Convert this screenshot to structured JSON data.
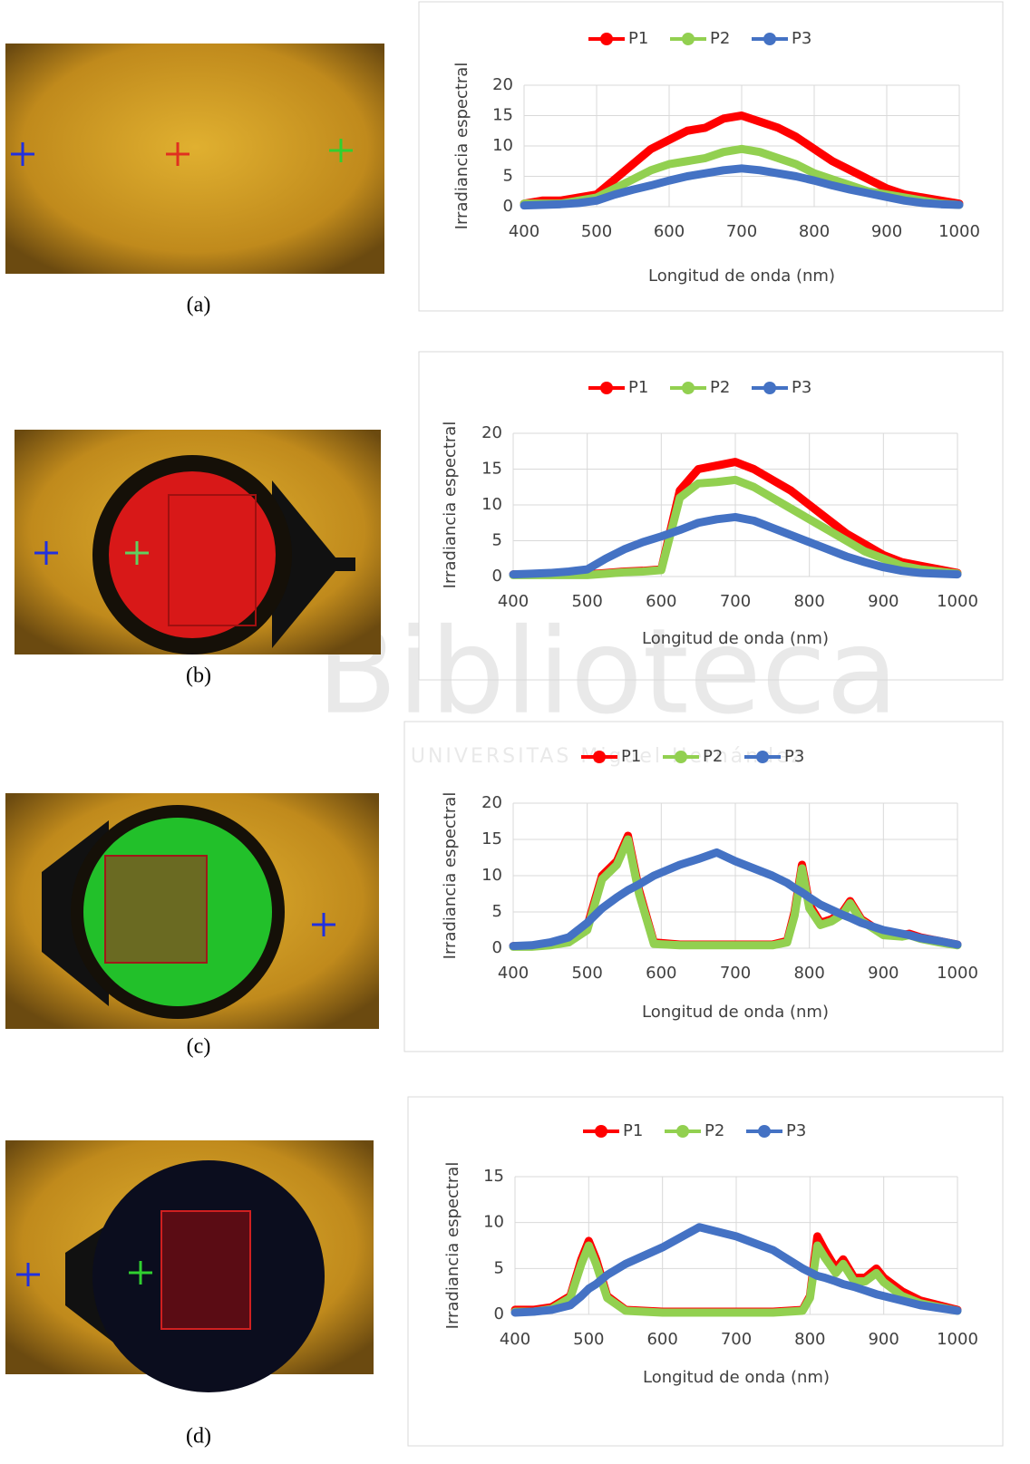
{
  "watermark": {
    "title": "Biblioteca",
    "subtitle": "UNIVERSITAS Miguel Hernández"
  },
  "chart_data": [
    {
      "type": "line",
      "caption": "(a)",
      "xlabel": "Longitud de onda (nm)",
      "ylabel": "Irradiancia espectral",
      "legend": "top",
      "grid": true,
      "xlim": [
        400,
        1000
      ],
      "xticks": [
        400,
        500,
        600,
        700,
        800,
        900,
        1000
      ],
      "ylim": [
        0,
        20
      ],
      "yticks": [
        0,
        5,
        10,
        15,
        20
      ],
      "x": [
        400,
        425,
        450,
        475,
        500,
        525,
        550,
        575,
        600,
        625,
        650,
        675,
        700,
        725,
        750,
        775,
        800,
        825,
        850,
        875,
        900,
        925,
        950,
        975,
        1000
      ],
      "series": [
        {
          "name": "P1",
          "color": "#ff0000",
          "values": [
            0.5,
            1,
            1,
            1.5,
            2,
            4.5,
            7,
            9.5,
            11,
            12.5,
            13,
            14.5,
            15,
            14,
            13,
            11.5,
            9.5,
            7.5,
            6,
            4.5,
            3,
            2,
            1.5,
            1,
            0.5
          ]
        },
        {
          "name": "P2",
          "color": "#92d050",
          "values": [
            0.5,
            0.5,
            0.5,
            1,
            1.5,
            3,
            4.5,
            6,
            7,
            7.5,
            8,
            9,
            9.5,
            9,
            8,
            7,
            5.5,
            4.5,
            3.5,
            2.5,
            2,
            1.5,
            1,
            0.5,
            0.3
          ]
        },
        {
          "name": "P3",
          "color": "#4472c4",
          "values": [
            0.2,
            0.3,
            0.4,
            0.6,
            1,
            2,
            2.8,
            3.5,
            4.3,
            5,
            5.5,
            6,
            6.3,
            6,
            5.5,
            5,
            4.3,
            3.5,
            2.8,
            2.2,
            1.6,
            1,
            0.6,
            0.4,
            0.3
          ]
        }
      ]
    },
    {
      "type": "line",
      "caption": "(b)",
      "xlabel": "Longitud de onda (nm)",
      "ylabel": "Irradiancia espectral",
      "legend": "top",
      "grid": true,
      "xlim": [
        400,
        1000
      ],
      "xticks": [
        400,
        500,
        600,
        700,
        800,
        900,
        1000
      ],
      "ylim": [
        0,
        20
      ],
      "yticks": [
        0,
        5,
        10,
        15,
        20
      ],
      "x": [
        400,
        425,
        450,
        475,
        500,
        525,
        550,
        575,
        600,
        625,
        650,
        675,
        700,
        725,
        750,
        775,
        800,
        825,
        850,
        875,
        900,
        925,
        950,
        975,
        1000
      ],
      "series": [
        {
          "name": "P1",
          "color": "#ff0000",
          "values": [
            0.3,
            0.3,
            0.3,
            0.3,
            0.3,
            0.5,
            0.7,
            0.8,
            1,
            12,
            15,
            15.5,
            16,
            15,
            13.5,
            12,
            10,
            8,
            6,
            4.5,
            3,
            2,
            1.5,
            1,
            0.5
          ]
        },
        {
          "name": "P2",
          "color": "#92d050",
          "values": [
            0.2,
            0.2,
            0.2,
            0.2,
            0.2,
            0.4,
            0.6,
            0.7,
            0.9,
            11,
            13,
            13.2,
            13.5,
            12.5,
            11,
            9.5,
            8,
            6.5,
            5,
            3.5,
            2.5,
            1.5,
            1,
            0.7,
            0.4
          ]
        },
        {
          "name": "P3",
          "color": "#4472c4",
          "values": [
            0.3,
            0.4,
            0.5,
            0.7,
            1,
            2.5,
            3.8,
            4.8,
            5.6,
            6.5,
            7.5,
            8,
            8.3,
            7.8,
            6.8,
            5.8,
            4.8,
            3.8,
            2.8,
            2,
            1.3,
            0.8,
            0.5,
            0.4,
            0.3
          ]
        }
      ]
    },
    {
      "type": "line",
      "caption": "(c)",
      "xlabel": "Longitud de onda (nm)",
      "ylabel": "Irradiancia espectral",
      "legend": "top",
      "grid": true,
      "xlim": [
        400,
        1000
      ],
      "xticks": [
        400,
        500,
        600,
        700,
        800,
        900,
        1000
      ],
      "ylim": [
        0,
        20
      ],
      "yticks": [
        0,
        5,
        10,
        15,
        20
      ],
      "x": [
        400,
        425,
        450,
        475,
        500,
        520,
        540,
        555,
        570,
        590,
        625,
        650,
        675,
        700,
        725,
        750,
        770,
        780,
        790,
        800,
        815,
        830,
        845,
        855,
        870,
        900,
        925,
        935,
        950,
        975,
        1000
      ],
      "series": [
        {
          "name": "P1",
          "color": "#ff0000",
          "values": [
            0.3,
            0.3,
            0.5,
            1,
            3,
            10,
            12,
            15.5,
            8,
            0.8,
            0.5,
            0.5,
            0.5,
            0.5,
            0.5,
            0.5,
            1,
            5,
            11.5,
            6,
            3.5,
            4,
            5,
            6.5,
            4,
            2,
            1.8,
            2,
            1.5,
            1,
            0.5
          ]
        },
        {
          "name": "P2",
          "color": "#92d050",
          "values": [
            0.2,
            0.2,
            0.4,
            0.8,
            2.5,
            9.5,
            11.5,
            15,
            7.5,
            0.6,
            0.4,
            0.4,
            0.4,
            0.4,
            0.4,
            0.4,
            0.8,
            4.5,
            11,
            5.5,
            3.2,
            3.7,
            4.7,
            6.2,
            3.8,
            1.8,
            1.6,
            1.8,
            1.3,
            0.8,
            0.4
          ]
        },
        {
          "name": "P3",
          "color": "#4472c4",
          "values": [
            0.3,
            0.4,
            0.8,
            1.5,
            3.5,
            5.5,
            7,
            8,
            8.8,
            10,
            11.5,
            12.3,
            13.2,
            12,
            11,
            10,
            9,
            8.3,
            7.7,
            7,
            6,
            5.3,
            4.6,
            4.2,
            3.5,
            2.5,
            2,
            1.8,
            1.4,
            1,
            0.5
          ]
        }
      ]
    },
    {
      "type": "line",
      "caption": "(d)",
      "xlabel": "Longitud de onda (nm)",
      "ylabel": "Irradiancia espectral",
      "legend": "top",
      "grid": true,
      "xlim": [
        400,
        1000
      ],
      "xticks": [
        400,
        500,
        600,
        700,
        800,
        900,
        1000
      ],
      "ylim": [
        0,
        15
      ],
      "yticks": [
        0,
        5,
        10,
        15
      ],
      "x": [
        400,
        425,
        450,
        475,
        490,
        500,
        510,
        525,
        550,
        600,
        650,
        700,
        750,
        790,
        800,
        810,
        820,
        835,
        845,
        860,
        875,
        890,
        900,
        925,
        950,
        975,
        1000
      ],
      "series": [
        {
          "name": "P1",
          "color": "#ff0000",
          "values": [
            0.5,
            0.5,
            0.8,
            2,
            6,
            8,
            6,
            2,
            0.5,
            0.3,
            0.3,
            0.3,
            0.3,
            0.5,
            2,
            8.5,
            7,
            5,
            6,
            4,
            4,
            5,
            4,
            2.5,
            1.5,
            1,
            0.5
          ]
        },
        {
          "name": "P2",
          "color": "#92d050",
          "values": [
            0.3,
            0.3,
            0.6,
            1.8,
            5.5,
            7.5,
            5.5,
            1.8,
            0.4,
            0.2,
            0.2,
            0.2,
            0.2,
            0.4,
            1.8,
            7.5,
            6.2,
            4.5,
            5.5,
            3.6,
            3.6,
            4.5,
            3.5,
            2,
            1.2,
            0.8,
            0.4
          ]
        },
        {
          "name": "P3",
          "color": "#4472c4",
          "values": [
            0.2,
            0.3,
            0.5,
            1,
            2,
            2.8,
            3.3,
            4.3,
            5.5,
            7.3,
            9.5,
            8.5,
            7,
            5,
            4.6,
            4.2,
            4,
            3.6,
            3.3,
            3,
            2.6,
            2.2,
            2,
            1.5,
            1,
            0.7,
            0.4
          ]
        }
      ]
    }
  ]
}
